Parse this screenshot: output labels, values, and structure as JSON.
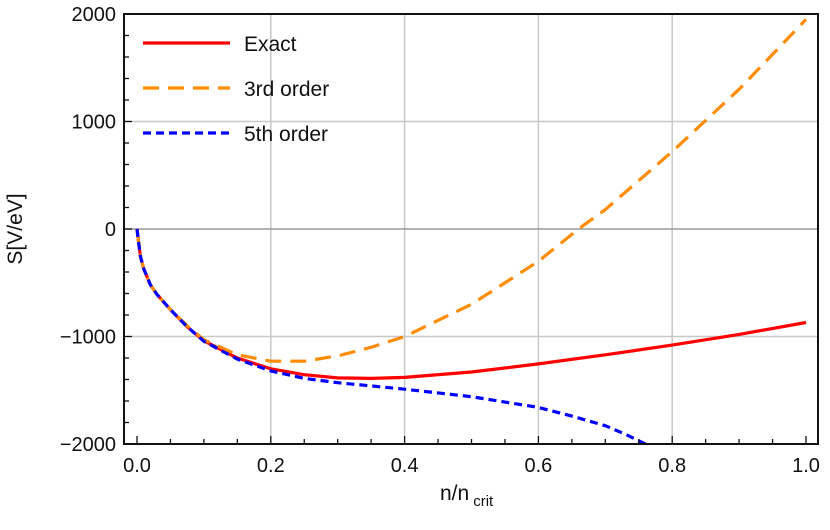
{
  "chart_data": {
    "type": "line",
    "title": "",
    "xlabel": "n/n",
    "xlabel_sub": "crit",
    "ylabel": "S[V/eV]",
    "xlim": [
      0,
      1.0
    ],
    "ylim": [
      -2000,
      2000
    ],
    "xticks": [
      "0.0",
      "0.2",
      "0.4",
      "0.6",
      "0.8",
      "1.0"
    ],
    "yticks": [
      "2000",
      "1000",
      "0",
      "−1000",
      "−2000"
    ],
    "grid": true,
    "legend_position": "top-left",
    "series": [
      {
        "name": "Exact",
        "color": "#ff0000",
        "dash": "solid",
        "x": [
          0,
          0.005,
          0.01,
          0.02,
          0.03,
          0.05,
          0.075,
          0.1,
          0.15,
          0.2,
          0.25,
          0.3,
          0.35,
          0.4,
          0.5,
          0.6,
          0.7,
          0.8,
          0.9,
          1.0
        ],
        "y": [
          0,
          -250,
          -370,
          -520,
          -610,
          -750,
          -910,
          -1040,
          -1200,
          -1300,
          -1355,
          -1385,
          -1390,
          -1380,
          -1330,
          -1255,
          -1170,
          -1080,
          -980,
          -870
        ]
      },
      {
        "name": "3rd order",
        "color": "#ff8c00",
        "dash": "long",
        "x": [
          0,
          0.005,
          0.01,
          0.02,
          0.03,
          0.05,
          0.075,
          0.1,
          0.15,
          0.2,
          0.25,
          0.3,
          0.35,
          0.4,
          0.5,
          0.6,
          0.66,
          0.7,
          0.8,
          0.9,
          1.0
        ],
        "y": [
          0,
          -250,
          -370,
          -520,
          -610,
          -750,
          -900,
          -1030,
          -1170,
          -1230,
          -1230,
          -1180,
          -1100,
          -1000,
          -700,
          -300,
          0,
          180,
          720,
          1300,
          1950
        ]
      },
      {
        "name": "5th order",
        "color": "#0000ff",
        "dash": "short",
        "x": [
          0,
          0.005,
          0.01,
          0.02,
          0.03,
          0.05,
          0.075,
          0.1,
          0.15,
          0.2,
          0.25,
          0.3,
          0.35,
          0.4,
          0.5,
          0.6,
          0.65,
          0.7,
          0.73,
          0.76
        ],
        "y": [
          0,
          -250,
          -370,
          -520,
          -610,
          -750,
          -910,
          -1045,
          -1210,
          -1320,
          -1390,
          -1430,
          -1460,
          -1490,
          -1560,
          -1660,
          -1740,
          -1830,
          -1910,
          -2000
        ]
      }
    ]
  }
}
